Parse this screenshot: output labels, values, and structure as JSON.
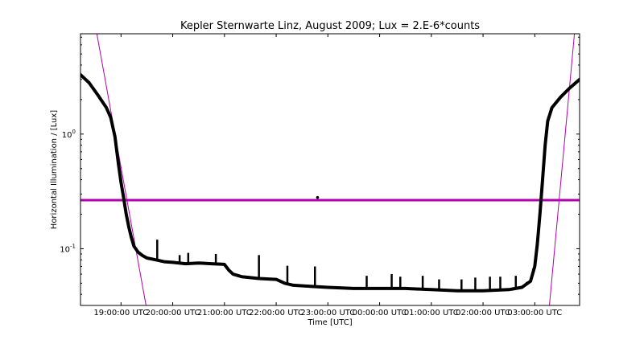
{
  "chart_data": {
    "type": "line",
    "title": "Kepler Sternwarte Linz, August 2009; Lux = 2.E-6*counts",
    "xlabel": "Time [UTC]",
    "ylabel": "Horizontal Illumination / [Lux]",
    "y_scale": "log",
    "ylim": [
      0.032,
      7.5
    ],
    "xlim": [
      "2009-08 18:13:00",
      "2009-08 03:52:00"
    ],
    "x_ticks": [
      "19:00:00 UTC",
      "20:00:00 UTC",
      "21:00:00 UTC",
      "22:00:00 UTC",
      "23:00:00 UTC",
      "00:00:00 UTC",
      "01:00:00 UTC",
      "02:00:00 UTC",
      "03:00:00 UTC"
    ],
    "y_ticks": [
      "10^-1",
      "10^0"
    ],
    "grid": false,
    "colors": {
      "measurement": "#000000",
      "reference": "#b000b0",
      "threshold": "#b000b0"
    },
    "series": [
      {
        "name": "",
        "kind": "thick-line",
        "x": [
          "18:13",
          "18:23",
          "18:33",
          "18:43",
          "18:48",
          "18:53",
          "18:57",
          "19:00",
          "19:03",
          "19:06",
          "19:09",
          "19:12",
          "19:15",
          "19:20",
          "19:25",
          "19:30",
          "19:40",
          "19:50",
          "20:00",
          "20:15",
          "20:30",
          "20:45",
          "21:00",
          "21:05",
          "21:10",
          "21:20",
          "21:40",
          "22:00",
          "22:10",
          "22:20",
          "22:40",
          "23:00",
          "23:30",
          "00:00",
          "00:30",
          "01:00",
          "01:30",
          "02:00",
          "02:30",
          "02:45",
          "02:55",
          "03:00",
          "03:03",
          "03:06",
          "03:09",
          "03:12",
          "03:15",
          "03:20",
          "03:30",
          "03:40",
          "03:52"
        ],
        "y": [
          3.3,
          2.8,
          2.2,
          1.7,
          1.4,
          0.95,
          0.55,
          0.38,
          0.28,
          0.2,
          0.155,
          0.125,
          0.105,
          0.093,
          0.087,
          0.083,
          0.08,
          0.077,
          0.076,
          0.074,
          0.075,
          0.074,
          0.073,
          0.065,
          0.06,
          0.057,
          0.055,
          0.054,
          0.05,
          0.048,
          0.047,
          0.046,
          0.045,
          0.045,
          0.045,
          0.044,
          0.043,
          0.043,
          0.044,
          0.046,
          0.052,
          0.07,
          0.11,
          0.2,
          0.4,
          0.8,
          1.3,
          1.7,
          2.1,
          2.5,
          3.0
        ]
      }
    ],
    "spikes": {
      "x": [
        "19:42",
        "20:08",
        "20:18",
        "20:50",
        "21:40",
        "22:13",
        "22:45",
        "23:45",
        "00:14",
        "00:24",
        "00:50",
        "01:09",
        "01:35",
        "01:51",
        "02:08",
        "02:20",
        "02:38",
        "02:58"
      ],
      "peak": [
        0.12,
        0.088,
        0.092,
        0.09,
        0.088,
        0.071,
        0.07,
        0.058,
        0.06,
        0.057,
        0.058,
        0.054,
        0.054,
        0.056,
        0.057,
        0.057,
        0.058,
        0.067
      ]
    },
    "outlier_points": {
      "x": [
        "22:48",
        "02:51",
        "03:19"
      ],
      "y": [
        0.28,
        0.05,
        1.65
      ]
    },
    "threshold_line": {
      "y": 0.265
    },
    "reference_curves": [
      {
        "name": "",
        "x": [
          "18:32",
          "19:29"
        ],
        "y": [
          7.5,
          0.032
        ]
      },
      {
        "name": "",
        "x": [
          "03:17",
          "03:46"
        ],
        "y": [
          0.032,
          7.5
        ]
      }
    ]
  }
}
